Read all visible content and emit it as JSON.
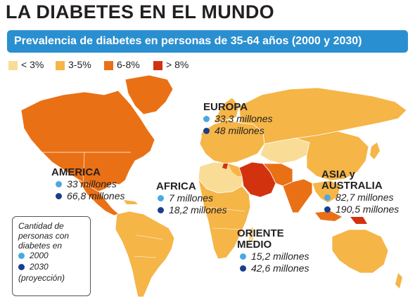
{
  "title": "LA DIABETES EN EL MUNDO",
  "subtitle": "Prevalencia de diabetes en personas de 35-64 años (2000 y 2030)",
  "legend": [
    {
      "label": "< 3%",
      "color": "#f9dc96"
    },
    {
      "label": "3-5%",
      "color": "#f5b547"
    },
    {
      "label": "6-8%",
      "color": "#ea7016"
    },
    {
      "label": "> 8%",
      "color": "#d3320f"
    }
  ],
  "colors": {
    "dot_2000": "#4aa9e0",
    "dot_2030": "#1a3d8c",
    "banner": "#2a8fd0"
  },
  "regions": {
    "europa": {
      "name": "EUROPA",
      "v2000": "33,3 millones",
      "v2030": "48 millones"
    },
    "america": {
      "name": "AMERICA",
      "v2000": "33 millones",
      "v2030": "66,8 millones"
    },
    "africa": {
      "name": "AFRICA",
      "v2000": "7 millones",
      "v2030": "18,2 millones"
    },
    "asia": {
      "name_line1": "ASIA y",
      "name_line2": "AUSTRALIA",
      "v2000": "82,7 millones",
      "v2030": "190,5 millones"
    },
    "oriente": {
      "name_line1": "ORIENTE",
      "name_line2": "MEDIO",
      "v2000": "15,2 millones",
      "v2030": "42,6 millones"
    }
  },
  "key": {
    "line1": "Cantidad de",
    "line2": "personas con",
    "line3": "diabetes en",
    "y2000": "2000",
    "y2030": "2030",
    "note": "(proyección)"
  }
}
